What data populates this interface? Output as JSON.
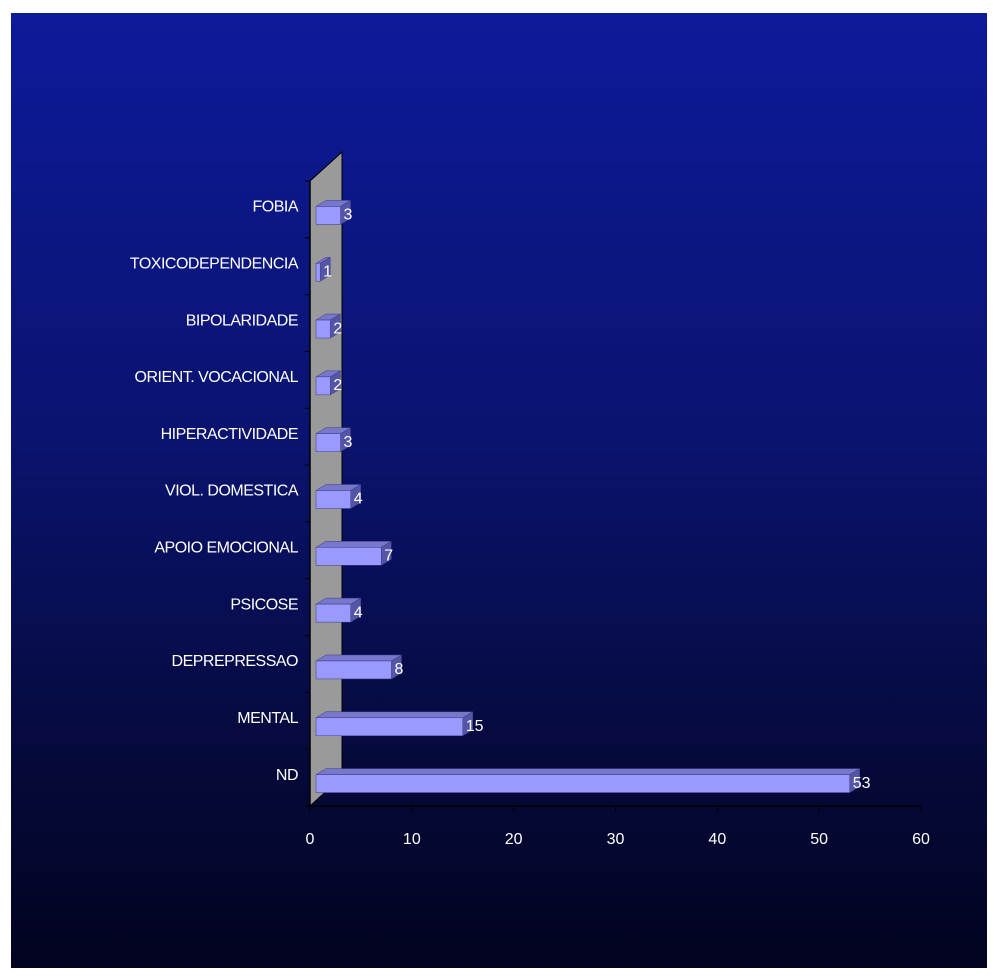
{
  "chart_data": {
    "type": "bar",
    "orientation": "horizontal",
    "style": "3d",
    "categories": [
      "ND",
      "MENTAL",
      "DEPREPRESSAO",
      "PSICOSE",
      "APOIO EMOCIONAL",
      "VIOL. DOMESTICA",
      "HIPERACTIVIDADE",
      "ORIENT. VOCACIONAL",
      "BIPOLARIDADE",
      "TOXICODEPENDENCIA",
      "FOBIA"
    ],
    "values": [
      53,
      15,
      8,
      4,
      7,
      4,
      3,
      2,
      2,
      1,
      3
    ],
    "data_labels": [
      "53",
      "15",
      "8",
      "4",
      "7",
      "4",
      "3",
      "2",
      "2",
      "1",
      "3"
    ],
    "title": "",
    "xlabel": "",
    "ylabel": "",
    "xlim": [
      0,
      60
    ],
    "x_ticks": [
      "0",
      "10",
      "20",
      "30",
      "40",
      "50",
      "60"
    ],
    "grid": false,
    "legend": "none"
  },
  "colors": {
    "background_top": "#0d1a9a",
    "background_bottom": "#02031f",
    "bar_front": "#9999ff",
    "bar_top": "#7777cc",
    "bar_side": "#5555a8",
    "back_wall": "#9a9a9a",
    "text": "#ffffff"
  }
}
